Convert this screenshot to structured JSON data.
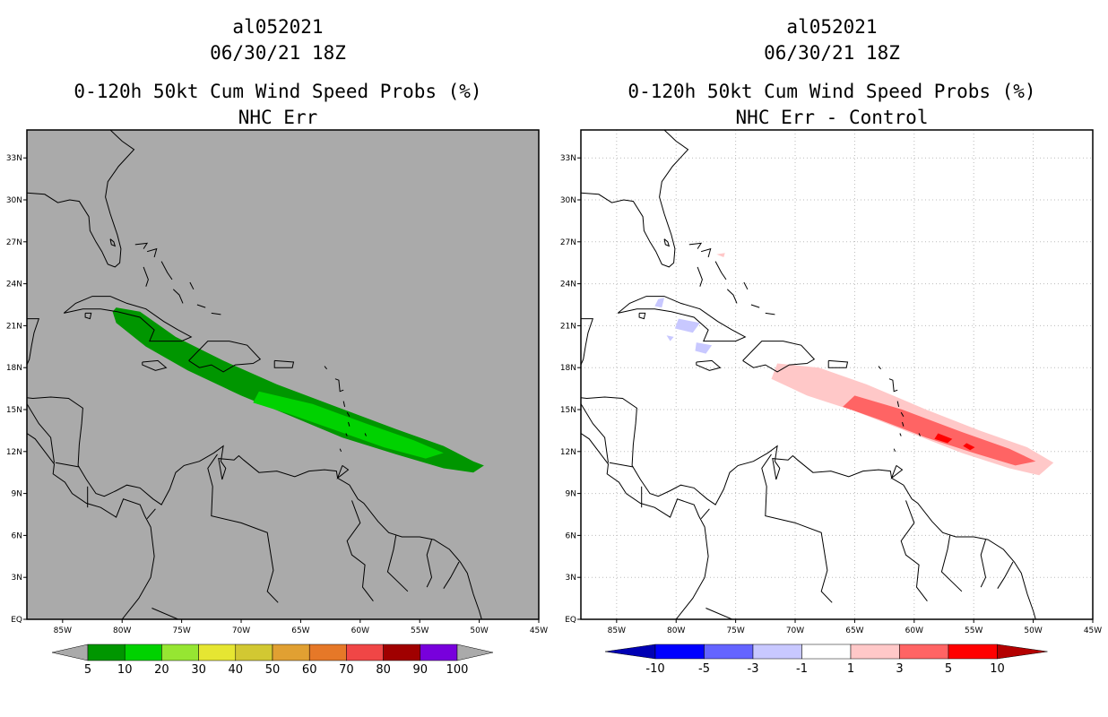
{
  "chart_data": [
    {
      "type": "map",
      "storm_id": "al052021",
      "datetime": "06/30/21 18Z",
      "title": "0-120h 50kt Cum Wind Speed Probs (%)",
      "subtitle": "NHC Err",
      "xlim": [
        -88,
        -45
      ],
      "ylim": [
        0,
        35
      ],
      "lon_ticks": [
        "85W",
        "80W",
        "75W",
        "70W",
        "65W",
        "60W",
        "55W",
        "50W",
        "45W"
      ],
      "lat_ticks": [
        "EQ",
        "3N",
        "6N",
        "9N",
        "12N",
        "15N",
        "18N",
        "21N",
        "24N",
        "27N",
        "30N",
        "33N"
      ],
      "background": "#aaaaaa",
      "colorbar": {
        "labels": [
          "5",
          "10",
          "20",
          "30",
          "40",
          "50",
          "60",
          "70",
          "80",
          "90",
          "100"
        ],
        "colors": [
          "#009600",
          "#00d200",
          "#96e632",
          "#e6e632",
          "#d2c832",
          "#e1a032",
          "#e67828",
          "#f04646",
          "#a00000",
          "#7800dc"
        ]
      },
      "regions": [
        {
          "name": "5-10%",
          "color": "#009600",
          "lonlat": [
            [
              -80.5,
              22.3
            ],
            [
              -78.5,
              22.0
            ],
            [
              -75.5,
              20.2
            ],
            [
              -71.5,
              18.5
            ],
            [
              -67.0,
              16.8
            ],
            [
              -62.0,
              15.2
            ],
            [
              -57.0,
              13.6
            ],
            [
              -53.0,
              12.4
            ],
            [
              -50.5,
              11.3
            ],
            [
              -49.6,
              11.0
            ],
            [
              -50.5,
              10.5
            ],
            [
              -53.0,
              10.8
            ],
            [
              -57.0,
              11.8
            ],
            [
              -61.5,
              13.0
            ],
            [
              -66.0,
              14.6
            ],
            [
              -70.0,
              16.0
            ],
            [
              -74.5,
              17.8
            ],
            [
              -78.0,
              19.5
            ],
            [
              -80.5,
              21.2
            ],
            [
              -80.8,
              22.0
            ]
          ]
        },
        {
          "name": "10-20%",
          "color": "#00d200",
          "lonlat": [
            [
              -68.5,
              16.3
            ],
            [
              -64.0,
              15.4
            ],
            [
              -59.5,
              14.0
            ],
            [
              -55.5,
              12.8
            ],
            [
              -53.0,
              11.9
            ],
            [
              -54.5,
              11.5
            ],
            [
              -58.0,
              12.3
            ],
            [
              -62.0,
              13.5
            ],
            [
              -66.0,
              14.7
            ],
            [
              -69.0,
              15.5
            ]
          ]
        }
      ]
    },
    {
      "type": "map",
      "storm_id": "al052021",
      "datetime": "06/30/21 18Z",
      "title": "0-120h 50kt Cum Wind Speed Probs (%)",
      "subtitle": "NHC Err - Control",
      "xlim": [
        -88,
        -45
      ],
      "ylim": [
        0,
        35
      ],
      "lon_ticks": [
        "85W",
        "80W",
        "75W",
        "70W",
        "65W",
        "60W",
        "55W",
        "50W",
        "45W"
      ],
      "lat_ticks": [
        "EQ",
        "3N",
        "6N",
        "9N",
        "12N",
        "15N",
        "18N",
        "21N",
        "24N",
        "27N",
        "30N",
        "33N"
      ],
      "background": "#ffffff",
      "colorbar": {
        "labels": [
          "-10",
          "-5",
          "-3",
          "-1",
          "1",
          "3",
          "5",
          "10"
        ],
        "colors": [
          "#0000b4",
          "#0000ff",
          "#6464ff",
          "#c8c8ff",
          "#ffffff",
          "#ffc8c8",
          "#ff6464",
          "#ff0000",
          "#b40000"
        ]
      },
      "regions": [
        {
          "name": "1-3%",
          "color": "#ffc8c8",
          "lonlat": [
            [
              -71.5,
              18.3
            ],
            [
              -68.0,
              18.0
            ],
            [
              -64.0,
              16.8
            ],
            [
              -59.0,
              15.0
            ],
            [
              -54.5,
              13.5
            ],
            [
              -50.5,
              12.3
            ],
            [
              -48.3,
              11.2
            ],
            [
              -49.5,
              10.3
            ],
            [
              -52.0,
              10.8
            ],
            [
              -56.0,
              11.9
            ],
            [
              -60.5,
              13.4
            ],
            [
              -65.0,
              14.9
            ],
            [
              -69.0,
              16.0
            ],
            [
              -72.0,
              17.2
            ]
          ]
        },
        {
          "name": "3-5%",
          "color": "#ff6464",
          "lonlat": [
            [
              -65.0,
              16.0
            ],
            [
              -61.0,
              15.0
            ],
            [
              -56.0,
              13.4
            ],
            [
              -52.0,
              12.2
            ],
            [
              -49.8,
              11.3
            ],
            [
              -51.5,
              11.0
            ],
            [
              -55.0,
              11.9
            ],
            [
              -59.0,
              13.0
            ],
            [
              -63.0,
              14.3
            ],
            [
              -66.0,
              15.2
            ]
          ]
        },
        {
          "name": "5-10%",
          "color": "#ff0000",
          "lonlat": [
            [
              -58.0,
              13.3
            ],
            [
              -56.8,
              12.9
            ],
            [
              -57.2,
              12.6
            ],
            [
              -58.3,
              12.9
            ]
          ]
        },
        {
          "name": "5-10% small",
          "color": "#ff0000",
          "lonlat": [
            [
              -55.6,
              12.6
            ],
            [
              -54.9,
              12.3
            ],
            [
              -55.3,
              12.1
            ],
            [
              -55.9,
              12.4
            ]
          ]
        },
        {
          "name": "-1--3% a",
          "color": "#c8c8ff",
          "lonlat": [
            [
              -81.5,
              22.9
            ],
            [
              -81.0,
              23.0
            ],
            [
              -81.2,
              22.3
            ],
            [
              -81.8,
              22.4
            ]
          ]
        },
        {
          "name": "-1--3% b",
          "color": "#c8c8ff",
          "lonlat": [
            [
              -79.8,
              21.5
            ],
            [
              -78.0,
              21.2
            ],
            [
              -78.6,
              20.5
            ],
            [
              -80.1,
              20.8
            ]
          ]
        },
        {
          "name": "-1--3% c",
          "color": "#c8c8ff",
          "lonlat": [
            [
              -78.3,
              19.8
            ],
            [
              -77.0,
              19.6
            ],
            [
              -77.5,
              19.0
            ],
            [
              -78.4,
              19.2
            ]
          ]
        },
        {
          "name": "-1--3% d",
          "color": "#c8c8ff",
          "lonlat": [
            [
              -80.8,
              20.3
            ],
            [
              -80.2,
              20.2
            ],
            [
              -80.5,
              19.9
            ]
          ]
        },
        {
          "name": "1-3% small",
          "color": "#ffc8c8",
          "lonlat": [
            [
              -76.6,
              26.1
            ],
            [
              -75.9,
              26.2
            ],
            [
              -76.0,
              25.9
            ]
          ]
        }
      ]
    }
  ]
}
